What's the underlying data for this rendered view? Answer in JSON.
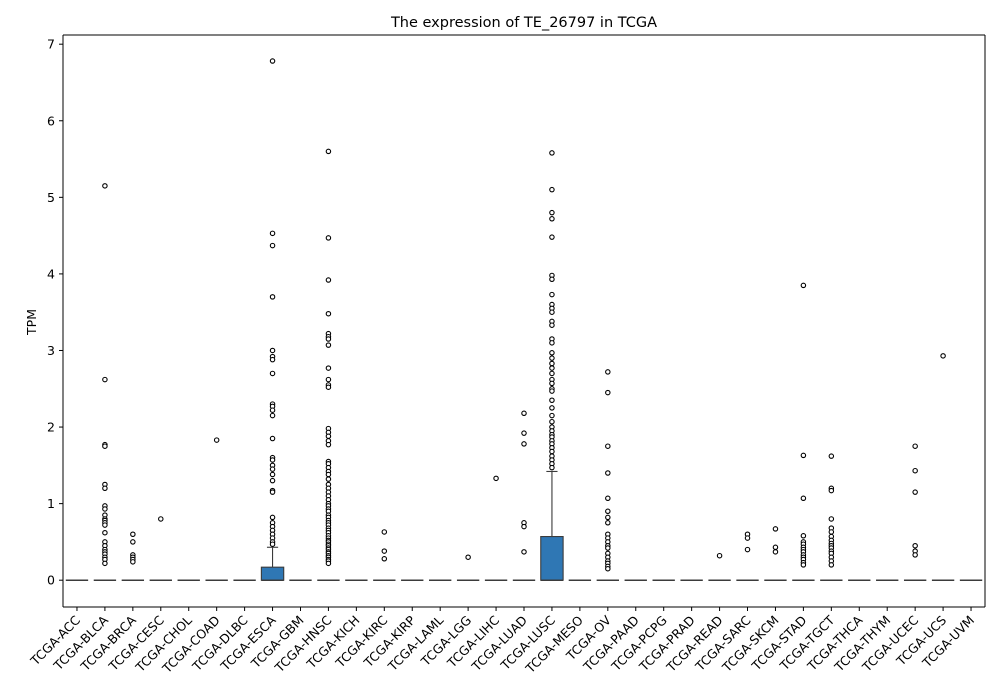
{
  "chart_data": {
    "type": "box",
    "title": "The expression of TE_26797 in TCGA",
    "xlabel": "",
    "ylabel": "TPM",
    "ylim": [
      -0.35,
      7.12
    ],
    "yticks": [
      0,
      1,
      2,
      3,
      4,
      5,
      6,
      7
    ],
    "grid": false,
    "colors": {
      "box_fill": "#2f77b4",
      "median": "#3b3b3b",
      "whisker": "#3b3b3b",
      "outlier_edge": "#000000"
    },
    "categories": [
      "TCGA-ACC",
      "TCGA-BLCA",
      "TCGA-BRCA",
      "TCGA-CESC",
      "TCGA-CHOL",
      "TCGA-COAD",
      "TCGA-DLBC",
      "TCGA-ESCA",
      "TCGA-GBM",
      "TCGA-HNSC",
      "TCGA-KICH",
      "TCGA-KIRC",
      "TCGA-KIRP",
      "TCGA-LAML",
      "TCGA-LGG",
      "TCGA-LIHC",
      "TCGA-LUAD",
      "TCGA-LUSC",
      "TCGA-MESO",
      "TCGA-OV",
      "TCGA-PAAD",
      "TCGA-PCPG",
      "TCGA-PRAD",
      "TCGA-READ",
      "TCGA-SARC",
      "TCGA-SKCM",
      "TCGA-STAD",
      "TCGA-TGCT",
      "TCGA-THCA",
      "TCGA-THYM",
      "TCGA-UCEC",
      "TCGA-UCS",
      "TCGA-UVM"
    ],
    "boxes": [
      {
        "q1": 0,
        "median": 0,
        "q3": 0,
        "whisker_low": 0,
        "whisker_high": 0,
        "outliers": []
      },
      {
        "q1": 0,
        "median": 0,
        "q3": 0,
        "whisker_low": 0,
        "whisker_high": 0,
        "outliers": [
          5.15,
          2.62,
          1.77,
          1.75,
          1.25,
          1.2,
          0.97,
          0.93,
          0.85,
          0.8,
          0.78,
          0.75,
          0.72,
          0.62,
          0.5,
          0.45,
          0.4,
          0.37,
          0.34,
          0.3,
          0.27,
          0.22
        ]
      },
      {
        "q1": 0,
        "median": 0,
        "q3": 0,
        "whisker_low": 0,
        "whisker_high": 0,
        "outliers": [
          0.6,
          0.5,
          0.33,
          0.3,
          0.27,
          0.24
        ]
      },
      {
        "q1": 0,
        "median": 0,
        "q3": 0,
        "whisker_low": 0,
        "whisker_high": 0,
        "outliers": [
          0.8
        ]
      },
      {
        "q1": 0,
        "median": 0,
        "q3": 0,
        "whisker_low": 0,
        "whisker_high": 0,
        "outliers": []
      },
      {
        "q1": 0,
        "median": 0,
        "q3": 0,
        "whisker_low": 0,
        "whisker_high": 0,
        "outliers": [
          1.83
        ]
      },
      {
        "q1": 0,
        "median": 0,
        "q3": 0,
        "whisker_low": 0,
        "whisker_high": 0,
        "outliers": []
      },
      {
        "q1": 0,
        "median": 0,
        "q3": 0.17,
        "whisker_low": 0,
        "whisker_high": 0.43,
        "outliers": [
          6.78,
          4.53,
          4.37,
          3.7,
          3.0,
          2.92,
          2.88,
          2.7,
          2.3,
          2.27,
          2.22,
          2.15,
          1.85,
          1.6,
          1.57,
          1.5,
          1.45,
          1.38,
          1.3,
          1.17,
          1.15,
          0.82,
          0.75,
          0.7,
          0.65,
          0.6,
          0.55,
          0.5,
          0.47
        ]
      },
      {
        "q1": 0,
        "median": 0,
        "q3": 0,
        "whisker_low": 0,
        "whisker_high": 0,
        "outliers": []
      },
      {
        "q1": 0,
        "median": 0,
        "q3": 0,
        "whisker_low": 0,
        "whisker_high": 0,
        "outliers": [
          5.6,
          4.47,
          3.92,
          3.48,
          3.22,
          3.18,
          3.15,
          3.07,
          2.77,
          2.62,
          2.55,
          2.52,
          1.98,
          1.93,
          1.88,
          1.82,
          1.77,
          1.55,
          1.52,
          1.47,
          1.42,
          1.38,
          1.32,
          1.25,
          1.2,
          1.15,
          1.1,
          1.05,
          1.0,
          0.97,
          0.93,
          0.9,
          0.85,
          0.82,
          0.78,
          0.75,
          0.72,
          0.68,
          0.65,
          0.62,
          0.58,
          0.55,
          0.52,
          0.5,
          0.47,
          0.45,
          0.42,
          0.4,
          0.37,
          0.35,
          0.32,
          0.3,
          0.27,
          0.25,
          0.22
        ]
      },
      {
        "q1": 0,
        "median": 0,
        "q3": 0,
        "whisker_low": 0,
        "whisker_high": 0,
        "outliers": []
      },
      {
        "q1": 0,
        "median": 0,
        "q3": 0,
        "whisker_low": 0,
        "whisker_high": 0,
        "outliers": [
          0.63,
          0.38,
          0.28
        ]
      },
      {
        "q1": 0,
        "median": 0,
        "q3": 0,
        "whisker_low": 0,
        "whisker_high": 0,
        "outliers": []
      },
      {
        "q1": 0,
        "median": 0,
        "q3": 0,
        "whisker_low": 0,
        "whisker_high": 0,
        "outliers": []
      },
      {
        "q1": 0,
        "median": 0,
        "q3": 0,
        "whisker_low": 0,
        "whisker_high": 0,
        "outliers": [
          0.3
        ]
      },
      {
        "q1": 0,
        "median": 0,
        "q3": 0,
        "whisker_low": 0,
        "whisker_high": 0,
        "outliers": [
          1.33
        ]
      },
      {
        "q1": 0,
        "median": 0,
        "q3": 0,
        "whisker_low": 0,
        "whisker_high": 0,
        "outliers": [
          2.18,
          1.92,
          1.78,
          0.75,
          0.7,
          0.37
        ]
      },
      {
        "q1": 0,
        "median": 0,
        "q3": 0.57,
        "whisker_low": 0,
        "whisker_high": 1.42,
        "outliers": [
          5.58,
          5.1,
          4.8,
          4.72,
          4.48,
          3.98,
          3.93,
          3.73,
          3.6,
          3.55,
          3.5,
          3.38,
          3.33,
          3.15,
          3.1,
          2.97,
          2.9,
          2.83,
          2.77,
          2.7,
          2.62,
          2.57,
          2.5,
          2.47,
          2.35,
          2.25,
          2.15,
          2.07,
          2.0,
          1.95,
          1.9,
          1.87,
          1.82,
          1.78,
          1.73,
          1.68,
          1.62,
          1.57,
          1.52,
          1.47
        ]
      },
      {
        "q1": 0,
        "median": 0,
        "q3": 0,
        "whisker_low": 0,
        "whisker_high": 0,
        "outliers": []
      },
      {
        "q1": 0,
        "median": 0,
        "q3": 0,
        "whisker_low": 0,
        "whisker_high": 0,
        "outliers": [
          2.72,
          2.45,
          1.75,
          1.4,
          1.07,
          0.9,
          0.82,
          0.75,
          0.6,
          0.55,
          0.5,
          0.45,
          0.42,
          0.35,
          0.3,
          0.25,
          0.22,
          0.18,
          0.15
        ]
      },
      {
        "q1": 0,
        "median": 0,
        "q3": 0,
        "whisker_low": 0,
        "whisker_high": 0,
        "outliers": []
      },
      {
        "q1": 0,
        "median": 0,
        "q3": 0,
        "whisker_low": 0,
        "whisker_high": 0,
        "outliers": []
      },
      {
        "q1": 0,
        "median": 0,
        "q3": 0,
        "whisker_low": 0,
        "whisker_high": 0,
        "outliers": []
      },
      {
        "q1": 0,
        "median": 0,
        "q3": 0,
        "whisker_low": 0,
        "whisker_high": 0,
        "outliers": [
          0.32
        ]
      },
      {
        "q1": 0,
        "median": 0,
        "q3": 0,
        "whisker_low": 0,
        "whisker_high": 0,
        "outliers": [
          0.6,
          0.55,
          0.4
        ]
      },
      {
        "q1": 0,
        "median": 0,
        "q3": 0,
        "whisker_low": 0,
        "whisker_high": 0,
        "outliers": [
          0.67,
          0.43,
          0.37
        ]
      },
      {
        "q1": 0,
        "median": 0,
        "q3": 0,
        "whisker_low": 0,
        "whisker_high": 0,
        "outliers": [
          3.85,
          1.63,
          1.07,
          0.58,
          0.5,
          0.47,
          0.43,
          0.4,
          0.37,
          0.33,
          0.3,
          0.27,
          0.23,
          0.2
        ]
      },
      {
        "q1": 0,
        "median": 0,
        "q3": 0,
        "whisker_low": 0,
        "whisker_high": 0,
        "outliers": [
          1.62,
          1.2,
          1.17,
          0.8,
          0.68,
          0.63,
          0.57,
          0.52,
          0.48,
          0.45,
          0.42,
          0.38,
          0.35,
          0.3,
          0.25,
          0.2
        ]
      },
      {
        "q1": 0,
        "median": 0,
        "q3": 0,
        "whisker_low": 0,
        "whisker_high": 0,
        "outliers": []
      },
      {
        "q1": 0,
        "median": 0,
        "q3": 0,
        "whisker_low": 0,
        "whisker_high": 0,
        "outliers": []
      },
      {
        "q1": 0,
        "median": 0,
        "q3": 0,
        "whisker_low": 0,
        "whisker_high": 0,
        "outliers": [
          1.75,
          1.43,
          1.15,
          0.45,
          0.38,
          0.33
        ]
      },
      {
        "q1": 0,
        "median": 0,
        "q3": 0,
        "whisker_low": 0,
        "whisker_high": 0,
        "outliers": [
          2.93
        ]
      },
      {
        "q1": 0,
        "median": 0,
        "q3": 0,
        "whisker_low": 0,
        "whisker_high": 0,
        "outliers": []
      }
    ]
  }
}
